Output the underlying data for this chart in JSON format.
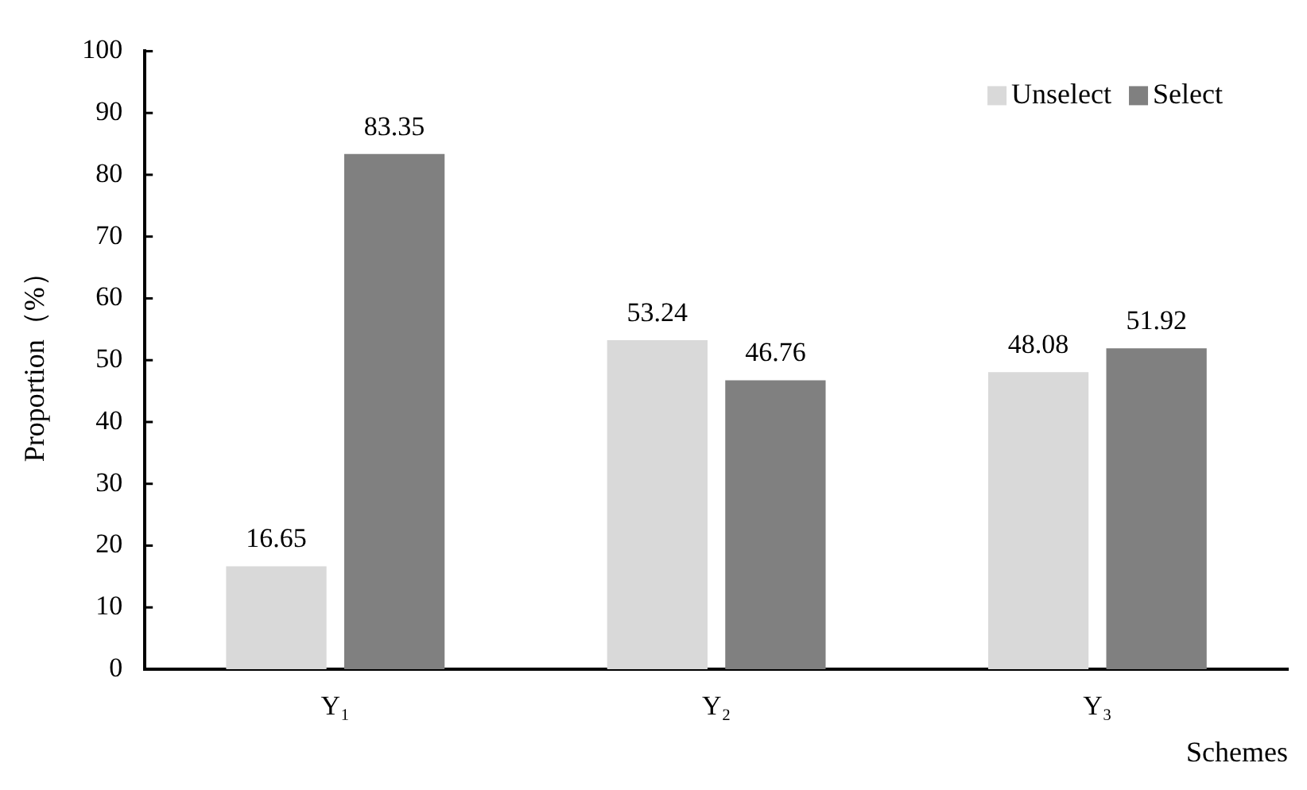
{
  "chart_data": {
    "type": "bar",
    "categories": [
      "Y₁",
      "Y₂",
      "Y₃"
    ],
    "xlabel": "Schemes",
    "ylabel": "Proportion（%）",
    "series": [
      {
        "name": "Unselect",
        "color": "#d9d9d9",
        "values": [
          16.65,
          53.24,
          48.08
        ]
      },
      {
        "name": "Select",
        "color": "#808080",
        "values": [
          83.35,
          46.76,
          51.92
        ]
      }
    ],
    "ylim": [
      0,
      100
    ],
    "yticks": [
      0,
      10,
      20,
      30,
      40,
      50,
      60,
      70,
      80,
      90,
      100
    ],
    "grid": false,
    "legend": "top right",
    "data_labels": true
  }
}
